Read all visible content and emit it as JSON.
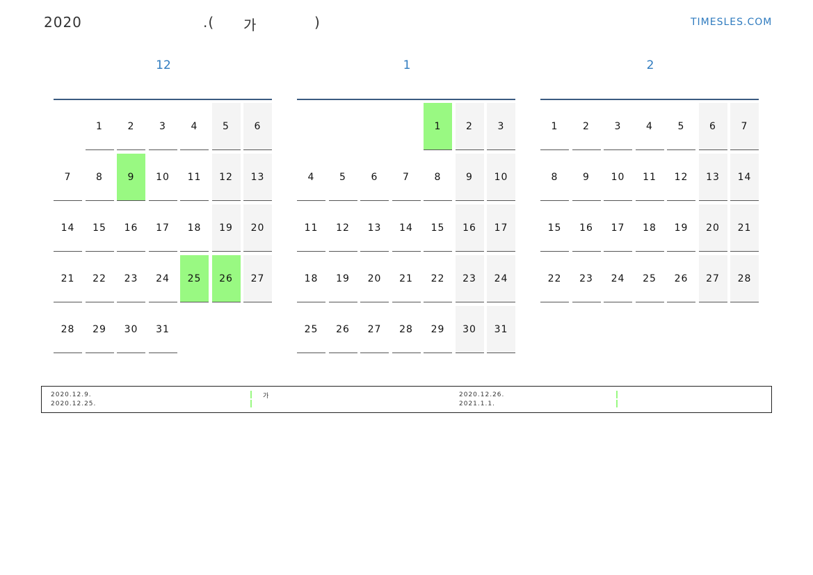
{
  "header": {
    "year": "2020",
    "title_mid": ".(",
    "title_char": "가",
    "title_end": ")",
    "logo": "TIMESLES.COM"
  },
  "colors": {
    "highlight": "#99f982",
    "weekend": "#f4f4f4",
    "accent": "#2f7bbf"
  },
  "months": [
    {
      "label": "12",
      "offset": 1,
      "days": 31,
      "highlights": [
        9,
        25,
        26
      ]
    },
    {
      "label": "1",
      "offset": 4,
      "days": 31,
      "highlights": [
        1
      ]
    },
    {
      "label": "2",
      "offset": 0,
      "days": 28,
      "highlights": []
    }
  ],
  "legend": [
    {
      "dates": [
        "2020.12.9.",
        "2020.12.25."
      ],
      "text": "가"
    },
    {
      "dates": [
        "2020.12.26.",
        "2021.1.1."
      ],
      "text": ""
    }
  ]
}
